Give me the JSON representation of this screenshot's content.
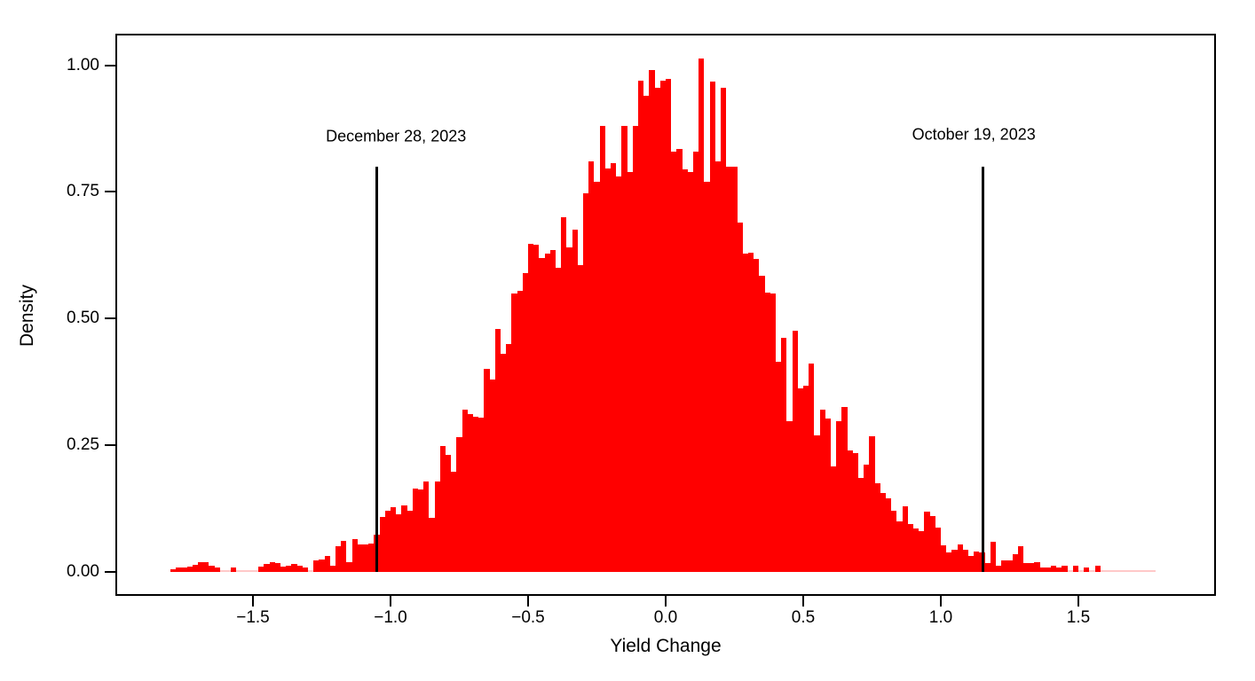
{
  "chart_data": {
    "type": "bar",
    "subtype": "histogram",
    "title": "",
    "xlabel": "Yield Change",
    "ylabel": "Density",
    "xlim": [
      -2,
      2
    ],
    "ylim": [
      -0.047,
      1.062
    ],
    "grid": false,
    "legend": false,
    "colors": {
      "bar": "#ff0000",
      "faint_bar": "#ffc9c9",
      "line": "#000000",
      "text": "#000000",
      "background": "#ffffff"
    },
    "x_ticks": [
      {
        "v": -1.5,
        "label": "−1.5"
      },
      {
        "v": -1.0,
        "label": "−1.0"
      },
      {
        "v": -0.5,
        "label": "−0.5"
      },
      {
        "v": 0.0,
        "label": "0.0"
      },
      {
        "v": 0.5,
        "label": "0.5"
      },
      {
        "v": 1.0,
        "label": "1.0"
      },
      {
        "v": 1.5,
        "label": "1.5"
      }
    ],
    "y_ticks": [
      {
        "v": 0.0,
        "label": "0.00"
      },
      {
        "v": 0.25,
        "label": "0.25"
      },
      {
        "v": 0.5,
        "label": "0.50"
      },
      {
        "v": 0.75,
        "label": "0.75"
      },
      {
        "v": 1.0,
        "label": "1.00"
      }
    ],
    "bins": {
      "start": -1.8,
      "width": 0.02
    },
    "heights": [
      0.006,
      0.008,
      0.008,
      0.01,
      0.014,
      0.019,
      0.02,
      0.012,
      0.008,
      0.002,
      0.002,
      0.009,
      0.002,
      0.002,
      0.002,
      0.002,
      0.01,
      0.016,
      0.02,
      0.017,
      0.01,
      0.013,
      0.016,
      0.012,
      0.008,
      0.003,
      0.023,
      0.024,
      0.031,
      0.013,
      0.05,
      0.061,
      0.02,
      0.064,
      0.055,
      0.055,
      0.056,
      0.073,
      0.108,
      0.12,
      0.127,
      0.114,
      0.131,
      0.12,
      0.165,
      0.163,
      0.178,
      0.107,
      0.178,
      0.249,
      0.231,
      0.198,
      0.266,
      0.321,
      0.311,
      0.306,
      0.305,
      0.4,
      0.38,
      0.48,
      0.43,
      0.45,
      0.55,
      0.555,
      0.59,
      0.648,
      0.645,
      0.62,
      0.628,
      0.635,
      0.6,
      0.7,
      0.64,
      0.675,
      0.605,
      0.747,
      0.81,
      0.77,
      0.88,
      0.797,
      0.806,
      0.78,
      0.88,
      0.79,
      0.88,
      0.97,
      0.94,
      0.99,
      0.955,
      0.97,
      0.973,
      0.83,
      0.835,
      0.795,
      0.79,
      0.83,
      1.013,
      0.77,
      0.968,
      0.81,
      0.955,
      0.8,
      0.8,
      0.69,
      0.628,
      0.63,
      0.618,
      0.585,
      0.552,
      0.55,
      0.414,
      0.462,
      0.298,
      0.476,
      0.362,
      0.368,
      0.412,
      0.27,
      0.32,
      0.303,
      0.208,
      0.298,
      0.325,
      0.24,
      0.235,
      0.185,
      0.212,
      0.268,
      0.175,
      0.155,
      0.145,
      0.12,
      0.1,
      0.13,
      0.095,
      0.085,
      0.081,
      0.119,
      0.11,
      0.088,
      0.053,
      0.038,
      0.044,
      0.055,
      0.044,
      0.032,
      0.041,
      0.038,
      0.018,
      0.06,
      0.012,
      0.023,
      0.023,
      0.035,
      0.05,
      0.018,
      0.018,
      0.019,
      0.009,
      0.009,
      0.012,
      0.009,
      0.013,
      0.002,
      0.012,
      0.002,
      0.009,
      0.002,
      0.012,
      0.002,
      0.002,
      0.002,
      0.002,
      0.002,
      0.002,
      0.002,
      0.002,
      0.002,
      0.002
    ],
    "annotations": [
      {
        "text": "December 28, 2023",
        "x": -1.05,
        "line_y": [
          0,
          0.8
        ],
        "text_x": -0.98,
        "text_y": 0.859
      },
      {
        "text": "October 19, 2023",
        "x": 1.152,
        "line_y": [
          0,
          0.8
        ],
        "text_x": 1.12,
        "text_y": 0.863
      }
    ]
  }
}
